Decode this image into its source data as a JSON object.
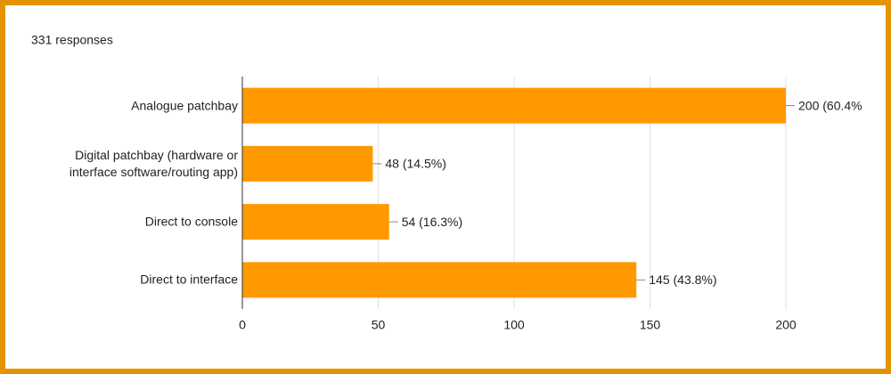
{
  "chart_data": {
    "type": "bar",
    "orientation": "horizontal",
    "title": "331 responses",
    "categories": [
      "Analogue patchbay",
      "Digital patchbay (hardware or interface software/routing app)",
      "Direct to console",
      "Direct to interface"
    ],
    "values": [
      200,
      48,
      54,
      145
    ],
    "value_labels": [
      "200 (60.4%",
      "48 (14.5%)",
      "54 (16.3%)",
      "145 (43.8%)"
    ],
    "color": "#ff9900",
    "xlim": [
      0,
      200
    ],
    "xticks": [
      0,
      50,
      100,
      150,
      200
    ],
    "grid": true
  }
}
